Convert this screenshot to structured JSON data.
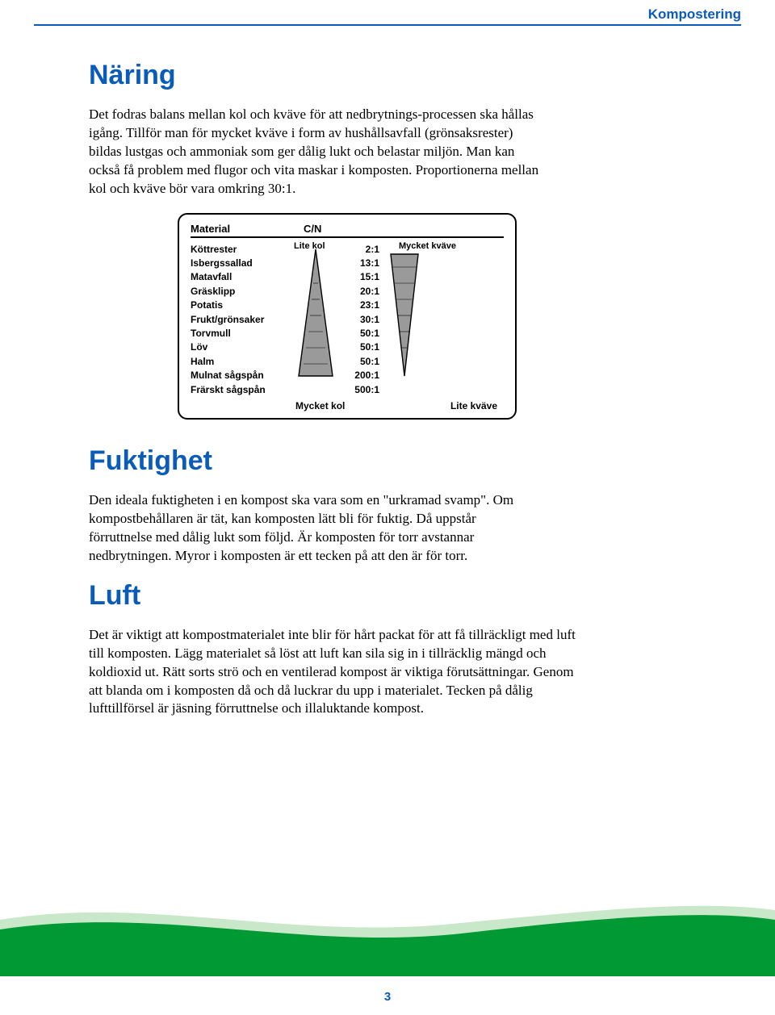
{
  "header": {
    "category": "Kompostering"
  },
  "sections": {
    "naring": {
      "title": "Näring",
      "body": "Det fodras balans mellan kol och kväve för att nedbrytnings-processen ska hållas igång. Tillför man för mycket kväve i form av hushållsavfall (grönsaksrester) bildas lustgas och ammoniak som ger dålig lukt och belastar miljön. Man kan också få problem med flugor och vita maskar i komposten. Proportionerna mellan kol och kväve bör vara omkring 30:1."
    },
    "fuktighet": {
      "title": "Fuktighet",
      "body": "Den ideala fuktigheten i en kompost ska vara som en \"urkramad svamp\". Om kompostbehållaren är tät, kan komposten lätt bli för fuktig. Då uppstår förruttnelse med dålig lukt som följd. Är komposten för torr avstannar nedbrytningen. Myror i komposten är ett tecken på att den är för torr."
    },
    "luft": {
      "title": "Luft",
      "body": "Det är viktigt att kompostmaterialet inte blir för hårt packat för att få tillräckligt med luft till komposten. Lägg materialet så löst att luft kan sila sig in i tillräcklig mängd och koldioxid ut. Rätt sorts strö och en ventilerad kompost är viktiga förutsättningar. Genom att blanda om i komposten då och då luckrar du upp i materialet. Tecken på dålig lufttillförsel är jäsning förruttnelse och illaluktande kompost."
    }
  },
  "chart": {
    "type": "table",
    "header_col1": "Material",
    "header_col2": "C/N",
    "left_tri_top": "Lite kol",
    "right_tri_top": "Mycket kväve",
    "foot_left": "Mycket kol",
    "foot_right": "Lite kväve",
    "materials": [
      "Köttrester",
      "Isbergssallad",
      "Matavfall",
      "Gräsklipp",
      "Potatis",
      "Frukt/grönsaker",
      "Torvmull",
      "Löv",
      "Halm",
      "Mulnat sågspån",
      "Frärskt sågspån"
    ],
    "ratios": [
      "2:1",
      "13:1",
      "15:1",
      "20:1",
      "23:1",
      "30:1",
      "50:1",
      "50:1",
      "50:1",
      "200:1",
      "500:1"
    ],
    "border_color": "#000000",
    "fontsize": 12,
    "triangle_fill": "#9a9a9a",
    "triangle_stroke": "#000000"
  },
  "footer": {
    "page_number": "3",
    "wave_top_color": "#c9e8c9",
    "wave_main_color": "#009933"
  },
  "colors": {
    "heading": "#0b5cb8",
    "text": "#000000",
    "background": "#ffffff"
  }
}
